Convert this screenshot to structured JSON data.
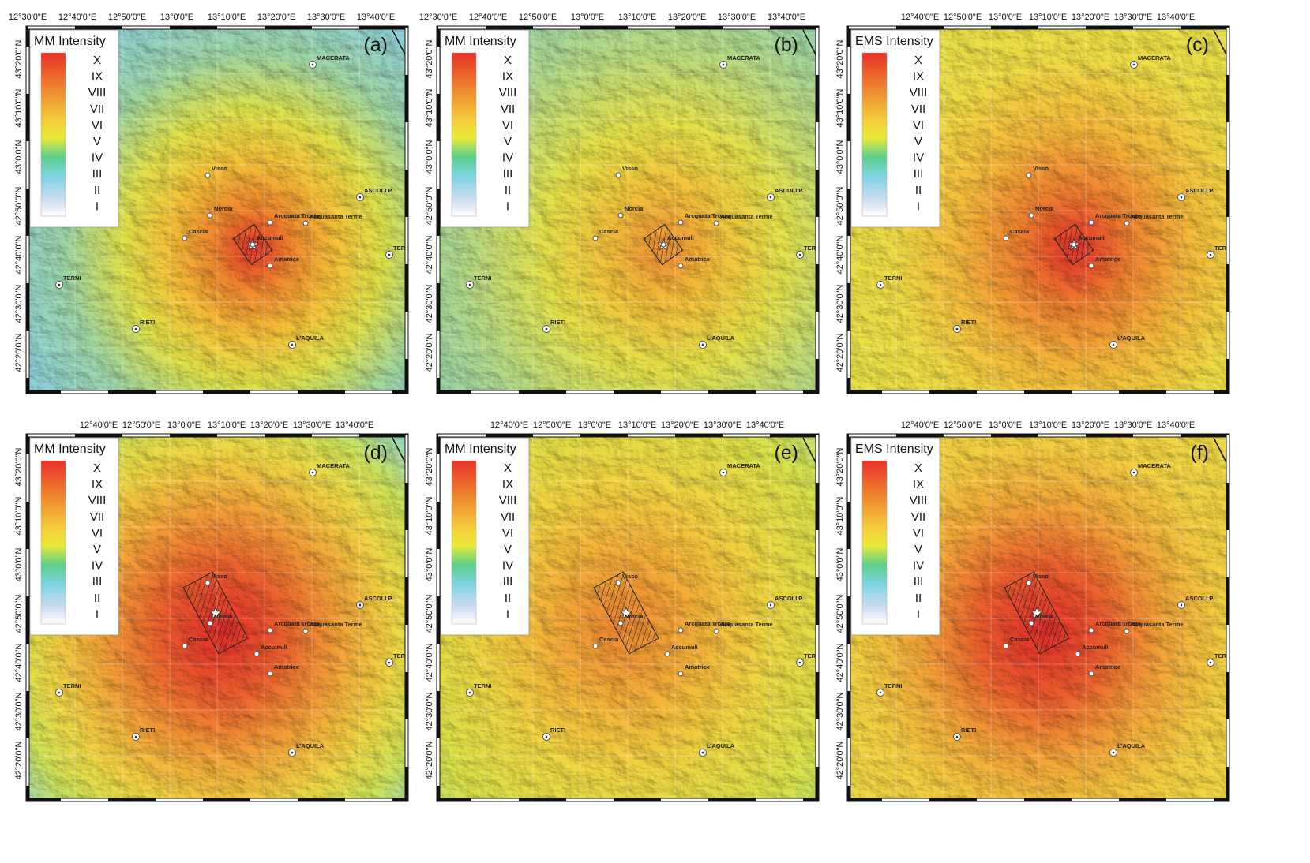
{
  "legend_levels": [
    "X",
    "IX",
    "VIII",
    "VII",
    "VI",
    "V",
    "IV",
    "III",
    "II",
    "I"
  ],
  "cities": [
    "MACERATA",
    "Visso",
    "ASCOLI P.",
    "Norcia",
    "Arcquata Tronto",
    "Acquasanta Terme",
    "Cascia",
    "Accumuli",
    "Amatrice",
    "TERAMO",
    "TERNI",
    "RIETI",
    "L'AQUILA"
  ],
  "panels": [
    {
      "label": "(a)",
      "legend_title": "MM Intensity",
      "lon_labels": [
        "12°30'0\"E",
        "12°40'0\"E",
        "12°50'0\"E",
        "13°0'0\"E",
        "13°10'0\"E",
        "13°20'0\"E",
        "13°30'0\"E",
        "13°40'0\"E"
      ],
      "lat_labels": [
        "43°20'0\"N",
        "43°10'0\"N",
        "43°0'0\"N",
        "42°50'0\"N",
        "42°40'0\"N",
        "42°30'0\"N",
        "42°20'0\"N"
      ]
    },
    {
      "label": "(b)",
      "legend_title": "MM Intensity",
      "lon_labels": [
        "12°30'0\"E",
        "12°40'0\"E",
        "12°50'0\"E",
        "13°0'0\"E",
        "13°10'0\"E",
        "13°20'0\"E",
        "13°30'0\"E",
        "13°40'0\"E"
      ],
      "lat_labels": [
        "43°20'0\"N",
        "43°10'0\"N",
        "43°0'0\"N",
        "42°50'0\"N",
        "42°40'0\"N",
        "42°30'0\"N",
        "42°20'0\"N"
      ]
    },
    {
      "label": "(c)",
      "legend_title": "EMS Intensity",
      "lon_labels": [
        "12°40'0\"E",
        "12°50'0\"E",
        "13°0'0\"E",
        "13°10'0\"E",
        "13°20'0\"E",
        "13°30'0\"E",
        "13°40'0\"E"
      ],
      "lat_labels": [
        "43°20'0\"N",
        "43°10'0\"N",
        "43°0'0\"N",
        "42°50'0\"N",
        "42°40'0\"N",
        "42°30'0\"N",
        "42°20'0\"N"
      ]
    },
    {
      "label": "(d)",
      "legend_title": "MM Intensity",
      "lon_labels": [
        "12°40'0\"E",
        "12°50'0\"E",
        "13°0'0\"E",
        "13°10'0\"E",
        "13°20'0\"E",
        "13°30'0\"E",
        "13°40'0\"E"
      ],
      "lat_labels": [
        "43°20'0\"N",
        "43°10'0\"N",
        "43°0'0\"N",
        "42°50'0\"N",
        "42°40'0\"N",
        "42°30'0\"N",
        "42°20'0\"N"
      ]
    },
    {
      "label": "(e)",
      "legend_title": "MM Intensity",
      "lon_labels": [
        "12°40'0\"E",
        "12°50'0\"E",
        "13°0'0\"E",
        "13°10'0\"E",
        "13°20'0\"E",
        "13°30'0\"E",
        "13°40'0\"E"
      ],
      "lat_labels": [
        "43°20'0\"N",
        "43°10'0\"N",
        "43°0'0\"N",
        "42°50'0\"N",
        "42°40'0\"N",
        "42°30'0\"N",
        "42°20'0\"N"
      ]
    },
    {
      "label": "(f)",
      "legend_title": "EMS Intensity",
      "lon_labels": [
        "12°40'0\"E",
        "12°50'0\"E",
        "13°0'0\"E",
        "13°10'0\"E",
        "13°20'0\"E",
        "13°30'0\"E",
        "13°40'0\"E"
      ],
      "lat_labels": [
        "43°20'0\"N",
        "43°10'0\"N",
        "43°0'0\"N",
        "42°50'0\"N",
        "42°40'0\"N",
        "42°30'0\"N",
        "42°20'0\"N"
      ]
    }
  ]
}
